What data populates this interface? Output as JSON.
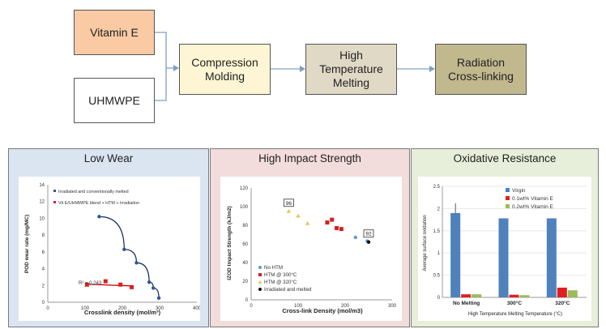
{
  "flow": {
    "vitamin_e": "Vitamin E",
    "uhmwpe": "UHMWPE",
    "compression": [
      "Compression",
      "Molding"
    ],
    "htm": [
      "High",
      "Temperature",
      "Melting"
    ],
    "radiation": [
      "Radiation",
      "Cross-linking"
    ],
    "colors": {
      "vitamin_e": "#f9caa3",
      "uhmwpe": "#ffffff",
      "compression": "#fdf5d4",
      "htm": "#e0d9c5",
      "radiation": "#c1b88e"
    }
  },
  "panels": {
    "wear": {
      "title": "Low Wear",
      "bg": "#dbe5f1"
    },
    "impact": {
      "title": "High Impact Strength",
      "bg": "#f3dcdc"
    },
    "oxidation": {
      "title": "Oxidative Resistance",
      "bg": "#e7eed9"
    }
  },
  "chart_data": [
    {
      "type": "scatter",
      "xlabel": "Crosslink density (mol/m³)",
      "ylabel": "POD wear rate (mg/MC)",
      "xlim": [
        0,
        400
      ],
      "ylim": [
        0,
        14
      ],
      "xticks": [
        "0",
        "100",
        "200",
        "300",
        "400"
      ],
      "yticks": [
        "0",
        "2",
        "4",
        "6",
        "8",
        "10",
        "12",
        "14"
      ],
      "series": [
        {
          "name": "Irradiated and conventionally melted",
          "color": "#2f5597",
          "points": [
            [
              138,
              10.2
            ],
            [
              205,
              6.3
            ],
            [
              238,
              4.7
            ],
            [
              272,
              2.4
            ],
            [
              283,
              1.7
            ],
            [
              298,
              0.5
            ]
          ]
        },
        {
          "name": "Vit E/UHMWPE blend + HTM + Irradiation",
          "color": "#d62020",
          "points": [
            [
              105,
              2.1
            ],
            [
              155,
              2.5
            ],
            [
              195,
              2.1
            ],
            [
              225,
              1.8
            ]
          ]
        }
      ],
      "annotation": "R² = 0.243"
    },
    {
      "type": "scatter",
      "xlabel": "Cross-link Density (mol/m3)",
      "ylabel": "IZOD Impact Strength (kJ/m2)",
      "xlim": [
        0,
        300
      ],
      "ylim": [
        0,
        120
      ],
      "xticks": [
        "0",
        "100",
        "200",
        "300"
      ],
      "yticks": [
        "0",
        "20",
        "40",
        "60",
        "80",
        "100",
        "120"
      ],
      "series": [
        {
          "name": "No HTM",
          "color": "#5b9bd5",
          "points": [
            [
              222,
              67
            ],
            [
              247,
              63
            ]
          ]
        },
        {
          "name": "HTM @ 300°C",
          "color": "#d62020",
          "points": [
            [
              162,
              83
            ],
            [
              172,
              86
            ],
            [
              182,
              77
            ],
            [
              192,
              76
            ]
          ]
        },
        {
          "name": "HTM @ 320°C",
          "color": "#e6c65a",
          "points": [
            [
              80,
              95
            ],
            [
              100,
              90
            ],
            [
              120,
              82
            ]
          ]
        },
        {
          "name": "Irradiated and melted",
          "color": "#111111",
          "points": [
            [
              250,
              62
            ]
          ]
        }
      ],
      "labels": [
        {
          "text": "96",
          "x": 80,
          "y": 95
        },
        {
          "text": "92",
          "x": 250,
          "y": 62
        }
      ]
    },
    {
      "type": "bar",
      "xlabel": "High Temperature Melting Temperature (°C)",
      "ylabel": "Average surface oxidation",
      "ylim": [
        0,
        2.5
      ],
      "yticks": [
        "0",
        "0.5",
        "1",
        "1.5",
        "2",
        "2.5"
      ],
      "categories": [
        "No Melting",
        "300°C",
        "320°C"
      ],
      "series": [
        {
          "name": "Virgin",
          "color": "#4f81bd",
          "values": [
            1.9,
            1.78,
            1.78
          ],
          "err": [
            0.22,
            0,
            0
          ]
        },
        {
          "name": "0.1wt% Vitamin E",
          "color": "#e02020",
          "values": [
            0.07,
            0.06,
            0.22
          ]
        },
        {
          "name": "0.2wt% Vitamin E",
          "color": "#9bbb59",
          "values": [
            0.07,
            0.05,
            0.16
          ]
        }
      ]
    }
  ]
}
